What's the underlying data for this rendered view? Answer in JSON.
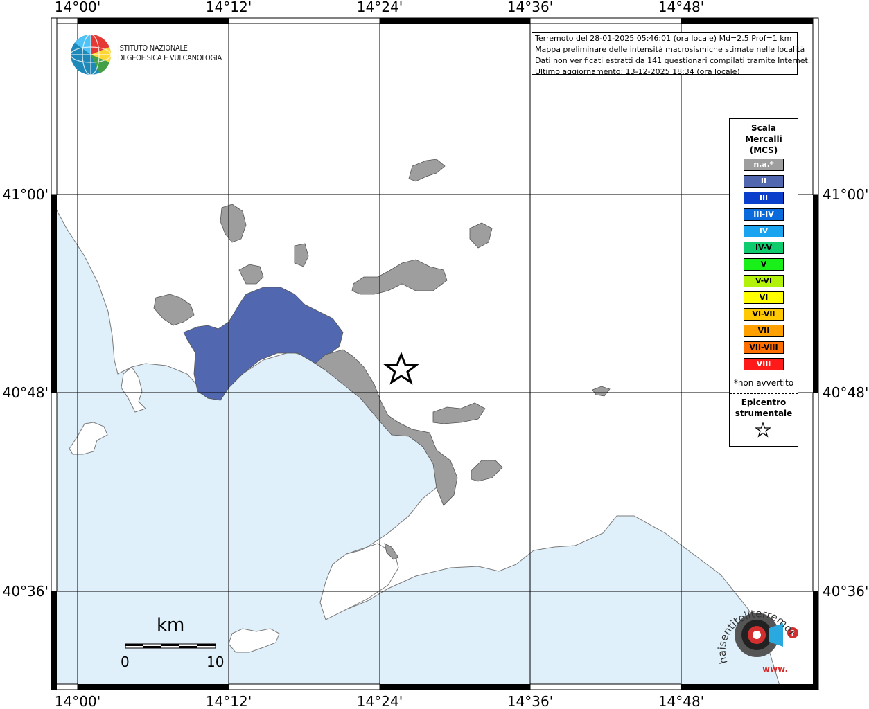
{
  "axes": {
    "lon_labels": [
      "14°00'",
      "14°12'",
      "14°24'",
      "14°36'",
      "14°48'"
    ],
    "lat_labels": [
      "41°00'",
      "40°48'",
      "40°36'"
    ]
  },
  "logo": {
    "line1": "ISTITUTO NAZIONALE",
    "line2": "DI GEOFISICA E VULCANOLOGIA"
  },
  "info": {
    "line1": "Terremoto del 28-01-2025 05:46:01 (ora locale) Md=2.5 Prof=1 km",
    "line2": "Mappa preliminare delle intensità macrosismiche stimate nelle località",
    "line3": "Dati non verificati estratti da 141 questionari compilati tramite Internet.",
    "line4": "Ultimo aggiornamento: 13-12-2025 18:34 (ora locale)"
  },
  "legend": {
    "title1": "Scala",
    "title2": "Mercalli",
    "title3": "(MCS)",
    "items": [
      {
        "label": "n.a.*",
        "color": "#9e9e9e"
      },
      {
        "label": "II",
        "color": "#5168b0"
      },
      {
        "label": "III",
        "color": "#0a3fcc"
      },
      {
        "label": "III-IV",
        "color": "#0a6bdc"
      },
      {
        "label": "IV",
        "color": "#1aa3ee"
      },
      {
        "label": "IV-V",
        "color": "#0ecb6e"
      },
      {
        "label": "V",
        "color": "#19f019"
      },
      {
        "label": "V-VI",
        "color": "#b2f20a"
      },
      {
        "label": "VI",
        "color": "#ffff00"
      },
      {
        "label": "VI-VII",
        "color": "#ffc800"
      },
      {
        "label": "VII",
        "color": "#ffa000"
      },
      {
        "label": "VII-VIII",
        "color": "#ff6e00"
      },
      {
        "label": "VIII",
        "color": "#ff1a1a"
      }
    ],
    "note": "*non avvertito",
    "epicenter1": "Epicentro",
    "epicenter2": "strumentale"
  },
  "scale_bar": {
    "unit": "km",
    "min": "0",
    "max": "10"
  },
  "watermark": {
    "text": "haisentitoilterremoto.it",
    "prefix": "www."
  },
  "colors": {
    "sea": "#dff0fb",
    "intensity_II": "#5168b0",
    "not_available": "#9e9e9e"
  }
}
